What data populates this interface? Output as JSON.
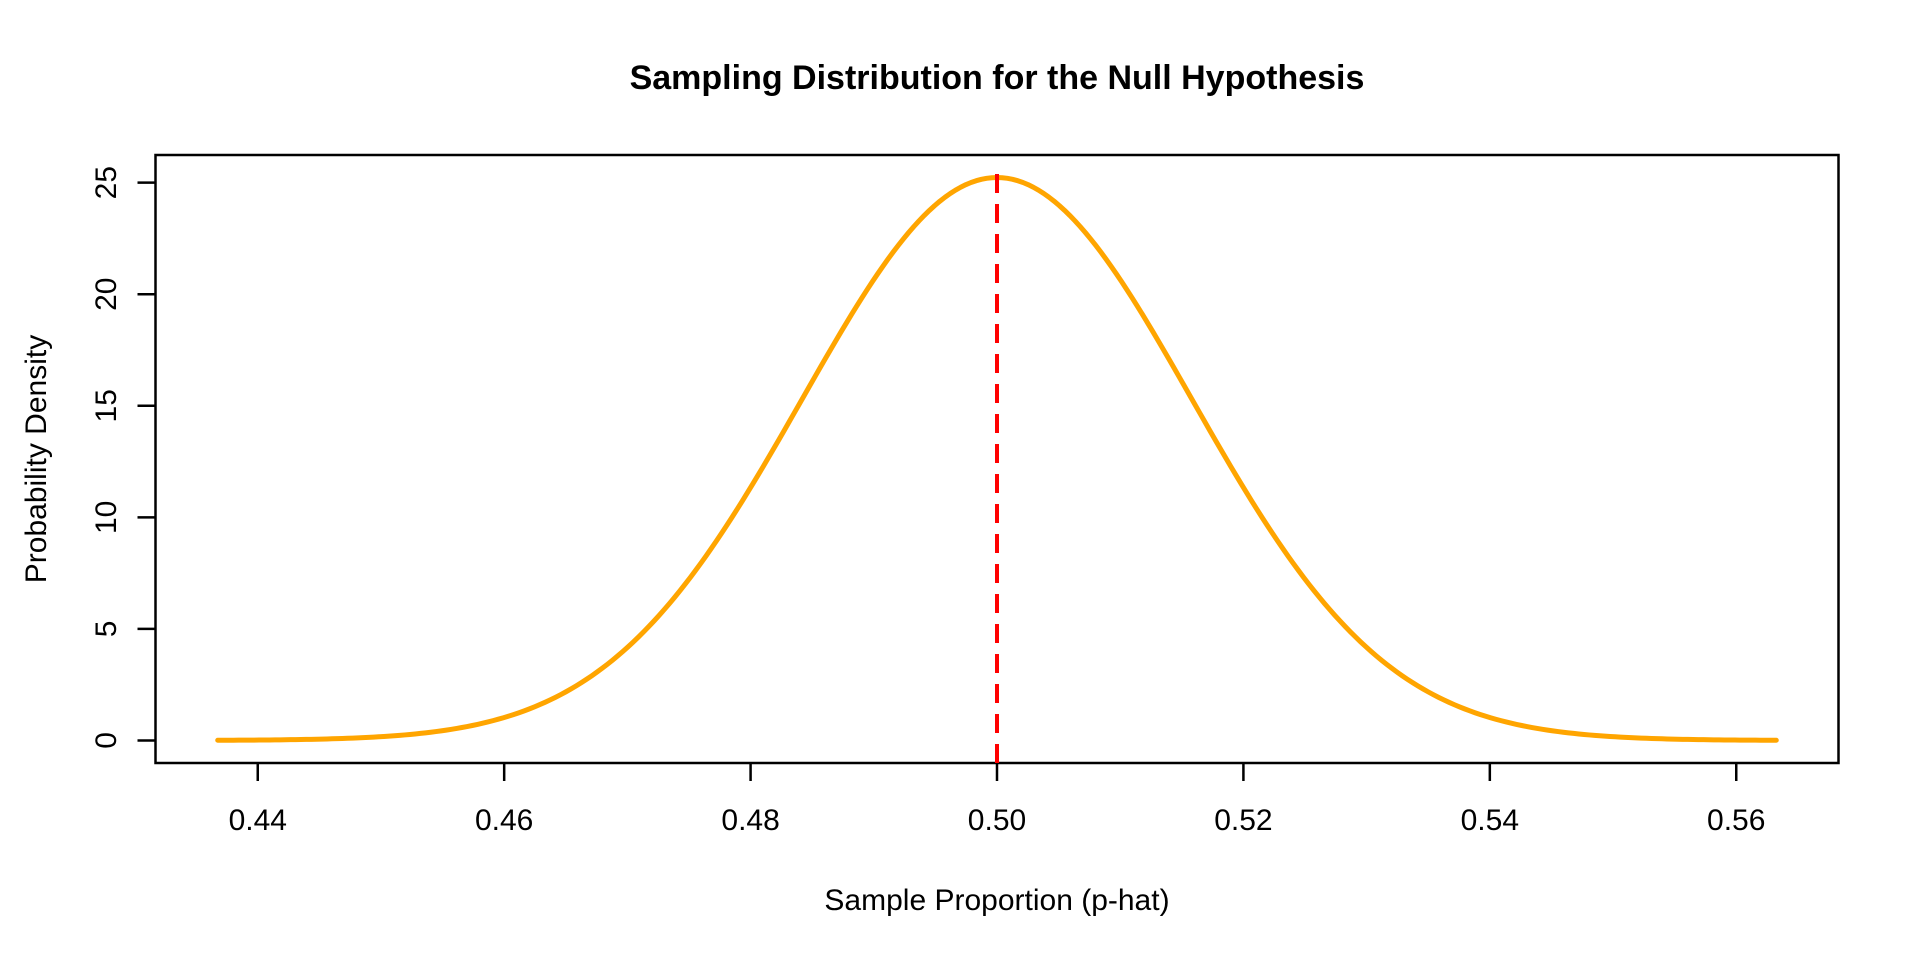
{
  "chart_data": {
    "type": "line",
    "title": "Sampling Distribution for the Null Hypothesis",
    "xlabel": "Sample Proportion (p-hat)",
    "ylabel": "Probability Density",
    "background_color": "#FFFFFF",
    "axis_color": "#000000",
    "grid": false,
    "legend": null,
    "xlim": [
      0.4317,
      0.5683
    ],
    "ylim": [
      -1.01,
      26.24
    ],
    "x_ticks": {
      "values": [
        0.44,
        0.46,
        0.48,
        0.5,
        0.52,
        0.54,
        0.56
      ],
      "labels": [
        "0.44",
        "0.46",
        "0.48",
        "0.50",
        "0.52",
        "0.54",
        "0.56"
      ]
    },
    "y_ticks": {
      "values": [
        0,
        5,
        10,
        15,
        20,
        25
      ],
      "labels": [
        "0",
        "5",
        "10",
        "15",
        "20",
        "25"
      ]
    },
    "series": [
      {
        "name": "null-sampling-distribution-curve",
        "shape": "normal-pdf",
        "color": "#FFA500",
        "line_width": 5,
        "mean": 0.5,
        "sd": 0.0158114,
        "x_start": 0.43675,
        "x_end": 0.56325,
        "peak_density": 25.231,
        "points": [
          [
            0.43675,
            0.008
          ],
          [
            0.44,
            0.019
          ],
          [
            0.445,
            0.06
          ],
          [
            0.45,
            0.17
          ],
          [
            0.455,
            0.44
          ],
          [
            0.46,
            1.029
          ],
          [
            0.465,
            2.177
          ],
          [
            0.47,
            4.171
          ],
          [
            0.475,
            7.229
          ],
          [
            0.48,
            11.337
          ],
          [
            0.485,
            16.088
          ],
          [
            0.49,
            20.657
          ],
          [
            0.495,
            24.0
          ],
          [
            0.5,
            25.231
          ],
          [
            0.505,
            24.0
          ],
          [
            0.51,
            20.657
          ],
          [
            0.515,
            16.088
          ],
          [
            0.52,
            11.337
          ],
          [
            0.525,
            7.229
          ],
          [
            0.53,
            4.171
          ],
          [
            0.535,
            2.177
          ],
          [
            0.54,
            1.029
          ],
          [
            0.545,
            0.44
          ],
          [
            0.55,
            0.17
          ],
          [
            0.555,
            0.06
          ],
          [
            0.56,
            0.019
          ],
          [
            0.56325,
            0.008
          ]
        ]
      }
    ],
    "reference_line": {
      "name": "null-value-line",
      "x": 0.5,
      "color": "#FF0000",
      "style": "dashed",
      "line_width": 4
    }
  }
}
